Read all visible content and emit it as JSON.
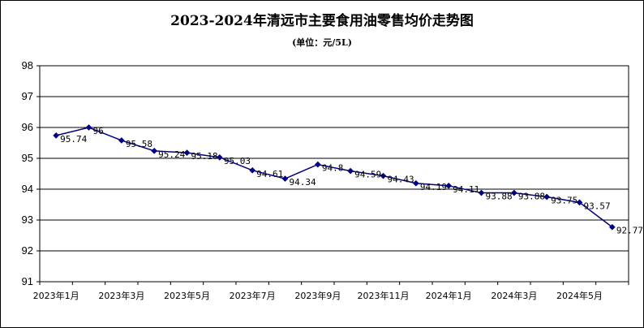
{
  "chart_data": {
    "type": "line",
    "title": "2023-2024年清远市主要食用油零售均价走势图",
    "subtitle": "(单位：元/5L)",
    "xlabel": "",
    "ylabel": "",
    "ylim": [
      91,
      98
    ],
    "yticks": [
      "98",
      "97",
      "96",
      "95",
      "94",
      "93",
      "92",
      "91"
    ],
    "grid": true,
    "legend": "none",
    "x": [
      "2023年1月",
      "2023年2月",
      "2023年3月",
      "2023年4月",
      "2023年5月",
      "2023年6月",
      "2023年7月",
      "2023年8月",
      "2023年9月",
      "2023年10月",
      "2023年11月",
      "2023年12月",
      "2024年1月",
      "2024年2月",
      "2024年3月",
      "2024年4月",
      "2024年5月",
      "2024年6月"
    ],
    "xtick_labels": [
      "2023年1月",
      "2023年3月",
      "2023年5月",
      "2023年7月",
      "2023年9月",
      "2023年11月",
      "2024年1月",
      "2024年3月",
      "2024年5月"
    ],
    "series": [
      {
        "values": [
          95.74,
          96,
          95.58,
          95.24,
          95.18,
          95.03,
          94.61,
          94.34,
          94.8,
          94.59,
          94.43,
          94.19,
          94.11,
          93.88,
          93.88,
          93.75,
          93.57,
          92.77
        ],
        "labels": [
          "95.74",
          "96",
          "95.58",
          "95.24",
          "95.18",
          "95.03",
          "94.61",
          "94.34",
          "94.8",
          "94.59",
          "94.43",
          "94.19",
          "94.11",
          "93.88",
          "93.88",
          "93.75",
          "93.57",
          "92.77"
        ],
        "color": "#000080"
      }
    ]
  }
}
